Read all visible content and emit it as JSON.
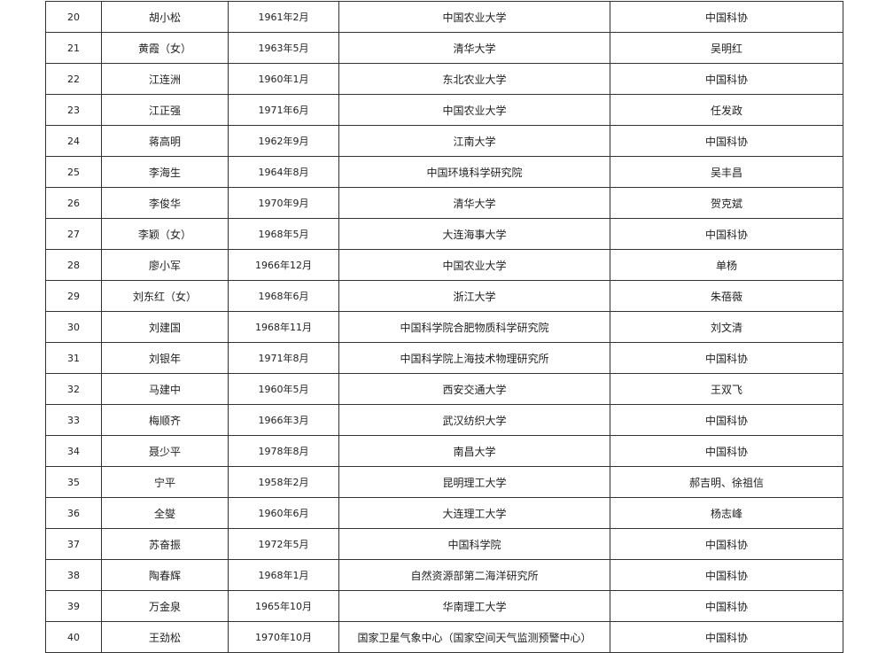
{
  "table": {
    "rows": [
      [
        "20",
        "胡小松",
        "1961年2月",
        "中国农业大学",
        "中国科协"
      ],
      [
        "21",
        "黄霞（女）",
        "1963年5月",
        "清华大学",
        "吴明红"
      ],
      [
        "22",
        "江连洲",
        "1960年1月",
        "东北农业大学",
        "中国科协"
      ],
      [
        "23",
        "江正强",
        "1971年6月",
        "中国农业大学",
        "任发政"
      ],
      [
        "24",
        "蒋高明",
        "1962年9月",
        "江南大学",
        "中国科协"
      ],
      [
        "25",
        "李海生",
        "1964年8月",
        "中国环境科学研究院",
        "吴丰昌"
      ],
      [
        "26",
        "李俊华",
        "1970年9月",
        "清华大学",
        "贺克斌"
      ],
      [
        "27",
        "李颖（女）",
        "1968年5月",
        "大连海事大学",
        "中国科协"
      ],
      [
        "28",
        "廖小军",
        "1966年12月",
        "中国农业大学",
        "单杨"
      ],
      [
        "29",
        "刘东红（女）",
        "1968年6月",
        "浙江大学",
        "朱蓓薇"
      ],
      [
        "30",
        "刘建国",
        "1968年11月",
        "中国科学院合肥物质科学研究院",
        "刘文清"
      ],
      [
        "31",
        "刘银年",
        "1971年8月",
        "中国科学院上海技术物理研究所",
        "中国科协"
      ],
      [
        "32",
        "马建中",
        "1960年5月",
        "西安交通大学",
        "王双飞"
      ],
      [
        "33",
        "梅顺齐",
        "1966年3月",
        "武汉纺织大学",
        "中国科协"
      ],
      [
        "34",
        "聂少平",
        "1978年8月",
        "南昌大学",
        "中国科协"
      ],
      [
        "35",
        "宁平",
        "1958年2月",
        "昆明理工大学",
        "郝吉明、徐祖信"
      ],
      [
        "36",
        "全燮",
        "1960年6月",
        "大连理工大学",
        "杨志峰"
      ],
      [
        "37",
        "苏奋振",
        "1972年5月",
        "中国科学院",
        "中国科协"
      ],
      [
        "38",
        "陶春辉",
        "1968年1月",
        "自然资源部第二海洋研究所",
        "中国科协"
      ],
      [
        "39",
        "万金泉",
        "1965年10月",
        "华南理工大学",
        "中国科协"
      ],
      [
        "40",
        "王劲松",
        "1970年10月",
        "国家卫星气象中心（国家空间天气监测预警中心）",
        "中国科协"
      ]
    ]
  }
}
